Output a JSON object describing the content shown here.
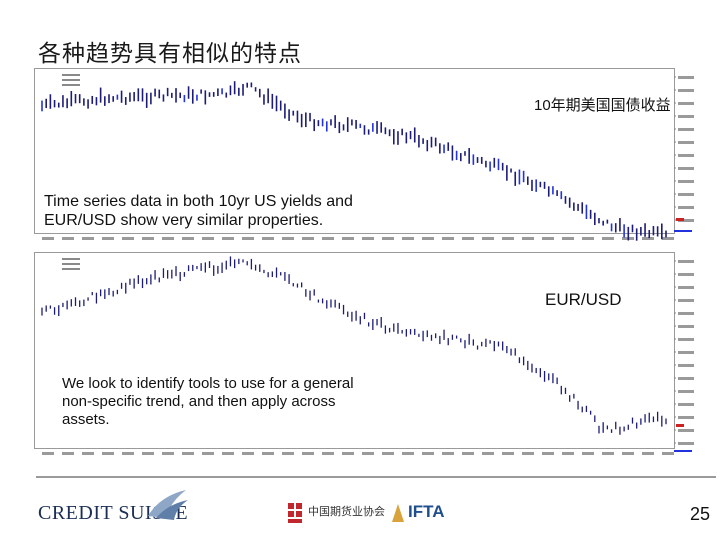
{
  "slide": {
    "title": "各种趋势具有相似的特点",
    "page_number": "25"
  },
  "top_chart": {
    "series_label": "10年期美国国债收益",
    "note": "Time series data in both 10yr US yields and EUR/USD show very similar properties."
  },
  "bottom_chart": {
    "series_label": "EUR/USD",
    "note": "We look to identify tools to use for a general non-specific trend, and then apply across assets."
  },
  "footer": {
    "logo_credit_suisse": "CREDIT SUISSE",
    "logo_china_futures": "中国期货业协会",
    "logo_ifta": "IFTA"
  },
  "colors": {
    "bar_dark": "#1c1c78",
    "bar_highlight": "#2233dd",
    "axis_text": "#666666",
    "marker_red": "#cc2222",
    "cs_navy": "#1b2f55",
    "cs_sail": "#8fa7c7",
    "cf_red": "#c0282d",
    "ifta_blue": "#1f4e8c"
  },
  "chart_data": [
    {
      "type": "bar",
      "note": "OHLC bars, 10yr US yield"
    },
    {
      "type": "bar",
      "note": "OHLC bars, EUR/USD"
    }
  ]
}
